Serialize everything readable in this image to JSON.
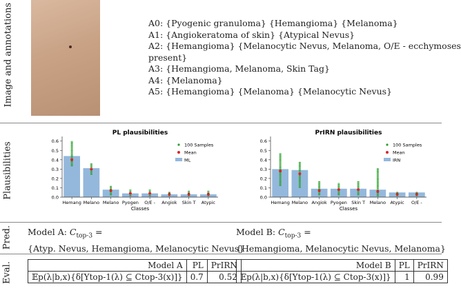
{
  "image_row": {
    "label": "Image and annotations",
    "annotations": [
      "A0: {Pyogenic granuloma} {Hemangioma} {Melanoma}",
      "A1: {Angiokeratoma of skin} {Atypical Nevus}",
      "A2:  {Hemangioma} {Melanocytic Nevus, Melanoma, O/E - ecchymoses",
      "present}",
      "A3: {Hemangioma, Melanoma, Skin Tag}",
      "A4: {Melanoma}",
      "A5: {Hemangioma} {Melanoma} {Melanocytic Nevus}"
    ]
  },
  "plausibilities": {
    "label": "Plausibilities",
    "charts": [
      {
        "type": "bar",
        "title": "PL plausibilities",
        "xlabel": "Classes",
        "categories": [
          "Hemang",
          "Melano",
          "Melano",
          "Pyogen",
          "O/E -",
          "Angiok",
          "Skin T",
          "Atypic"
        ],
        "bar_values": [
          0.44,
          0.31,
          0.08,
          0.04,
          0.04,
          0.03,
          0.03,
          0.03
        ],
        "mean_values": [
          0.4,
          0.3,
          0.07,
          0.04,
          0.04,
          0.03,
          0.03,
          0.03
        ],
        "sample_ranges": [
          [
            0.33,
            0.6
          ],
          [
            0.24,
            0.36
          ],
          [
            0.02,
            0.12
          ],
          [
            0.01,
            0.08
          ],
          [
            0.01,
            0.08
          ],
          [
            0.01,
            0.06
          ],
          [
            0.01,
            0.07
          ],
          [
            0.01,
            0.07
          ]
        ],
        "legend": {
          "samples": "100 Samples",
          "mean": "Mean",
          "bar": "ML"
        },
        "bar_color": "#94b8dc",
        "sample_color": "#2ca02c",
        "mean_color": "#d62728",
        "ylim": [
          0,
          0.62
        ],
        "yticks": [
          {
            "value": 0,
            "label": "0.0"
          },
          {
            "value": 0.1,
            "label": "0.1"
          },
          {
            "value": 0.2,
            "label": "0.2"
          },
          {
            "value": 0.3,
            "label": "0.3"
          },
          {
            "value": 0.4,
            "label": "0.4"
          },
          {
            "value": 0.5,
            "label": "0.5"
          },
          {
            "value": 0.6,
            "label": "0.6"
          }
        ]
      },
      {
        "type": "bar",
        "title": "PrIRN plausibilities",
        "xlabel": "Classes",
        "categories": [
          "Hemang",
          "Melano",
          "Angiok",
          "Pyogen",
          "Skin T",
          "Melano",
          "Atypic",
          "O/E -"
        ],
        "bar_values": [
          0.3,
          0.29,
          0.09,
          0.09,
          0.09,
          0.08,
          0.05,
          0.05
        ],
        "mean_values": [
          0.28,
          0.25,
          0.07,
          0.08,
          0.08,
          0.06,
          0.03,
          0.03
        ],
        "sample_ranges": [
          [
            0.12,
            0.47
          ],
          [
            0.1,
            0.38
          ],
          [
            0.02,
            0.17
          ],
          [
            0.02,
            0.15
          ],
          [
            0.02,
            0.17
          ],
          [
            0.01,
            0.31
          ],
          [
            0.01,
            0.06
          ],
          [
            0.01,
            0.06
          ]
        ],
        "legend": {
          "samples": "100 Samples",
          "mean": "Mean",
          "bar": "IRN"
        },
        "bar_color": "#94b8dc",
        "sample_color": "#2ca02c",
        "mean_color": "#d62728",
        "ylim": [
          0,
          0.62
        ],
        "yticks": [
          {
            "value": 0,
            "label": "0.0"
          },
          {
            "value": 0.1,
            "label": "0.1"
          },
          {
            "value": 0.2,
            "label": "0.2"
          },
          {
            "value": 0.3,
            "label": "0.3"
          },
          {
            "value": 0.4,
            "label": "0.4"
          },
          {
            "value": 0.5,
            "label": "0.5"
          },
          {
            "value": 0.6,
            "label": "0.6"
          }
        ]
      }
    ]
  },
  "pred_row": {
    "label": "Pred.",
    "models": [
      {
        "prefix": "Model A: ",
        "symbol": "C",
        "sub": "top-3",
        "suffix": " =",
        "set": "{Atyp. Nevus, Hemangioma, Melanocytic Nevus}"
      },
      {
        "prefix": "Model B: ",
        "symbol": "C",
        "sub": "top-3",
        "suffix": " =",
        "set": "{Hemangioma, Melanocytic Nevus, Melanoma}"
      }
    ]
  },
  "eval_row": {
    "label": "Eval.",
    "tables": [
      {
        "header": [
          "Model A",
          "PL",
          "PrIRN"
        ],
        "row": [
          "𝔼p(λ|b,x){δ[Ytop-1(λ) ⊆ Ctop-3(x)]}",
          "0.7",
          "0.52"
        ]
      },
      {
        "header": [
          "Model B",
          "PL",
          "PrIRN"
        ],
        "row": [
          "𝔼p(λ|b,x){δ[Ytop-1(λ) ⊆ Ctop-3(x)]}",
          "1",
          "0.99"
        ]
      }
    ]
  }
}
